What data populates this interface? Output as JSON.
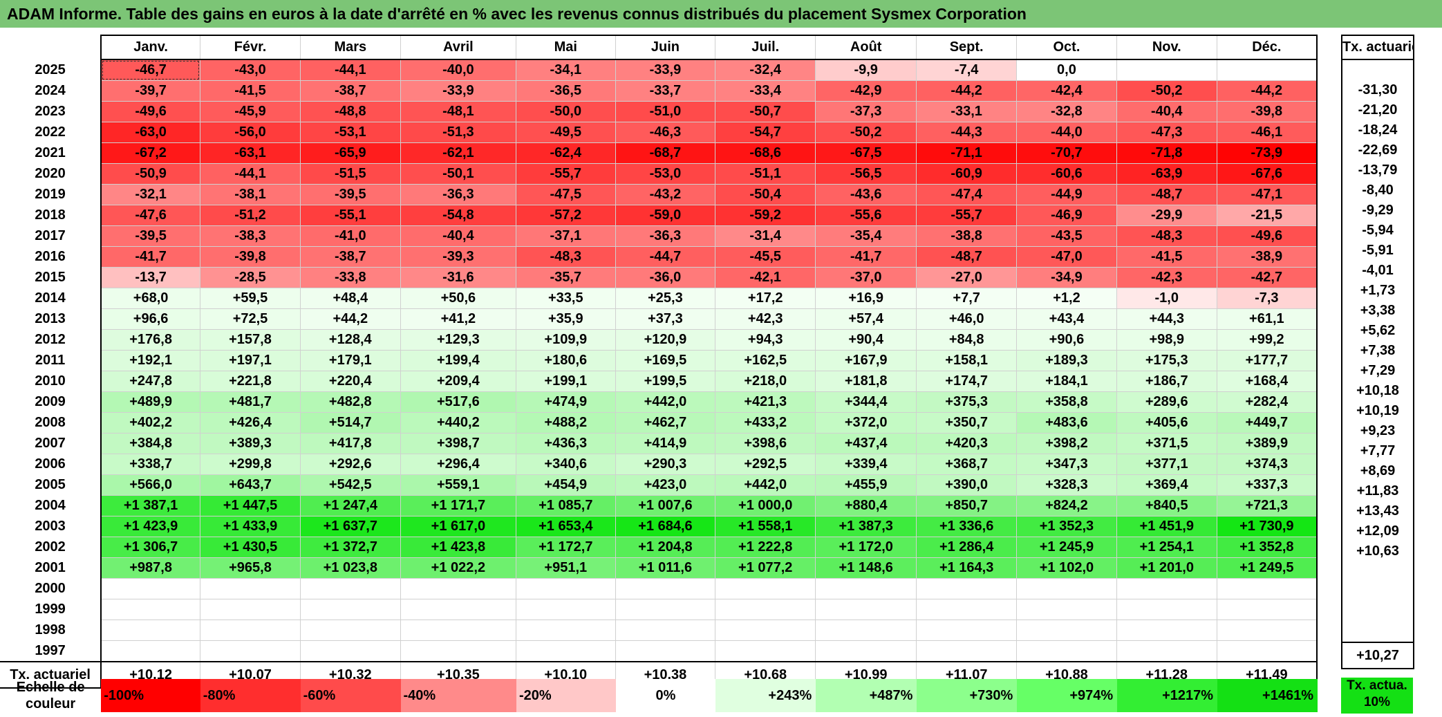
{
  "title": "ADAM Informe. Table des gains en euros à la date d'arrêté en % avec les revenus connus distribués du placement Sysmex Corporation",
  "months": [
    "Janv.",
    "Févr.",
    "Mars",
    "Avril",
    "Mai",
    "Juin",
    "Juil.",
    "Août",
    "Sept.",
    "Oct.",
    "Nov.",
    "Déc."
  ],
  "annual_header": "Tx. actuariel",
  "rows": [
    {
      "year": "2025",
      "values": [
        "-46,7",
        "-43,0",
        "-44,1",
        "-40,0",
        "-34,1",
        "-33,9",
        "-32,4",
        "-9,9",
        "-7,4",
        "0,0",
        "",
        ""
      ],
      "annual": ""
    },
    {
      "year": "2024",
      "values": [
        "-39,7",
        "-41,5",
        "-38,7",
        "-33,9",
        "-36,5",
        "-33,7",
        "-33,4",
        "-42,9",
        "-44,2",
        "-42,4",
        "-50,2",
        "-44,2"
      ],
      "annual": "-31,30"
    },
    {
      "year": "2023",
      "values": [
        "-49,6",
        "-45,9",
        "-48,8",
        "-48,1",
        "-50,0",
        "-51,0",
        "-50,7",
        "-37,3",
        "-33,1",
        "-32,8",
        "-40,4",
        "-39,8"
      ],
      "annual": "-21,20"
    },
    {
      "year": "2022",
      "values": [
        "-63,0",
        "-56,0",
        "-53,1",
        "-51,3",
        "-49,5",
        "-46,3",
        "-54,7",
        "-50,2",
        "-44,3",
        "-44,0",
        "-47,3",
        "-46,1"
      ],
      "annual": "-18,24"
    },
    {
      "year": "2021",
      "values": [
        "-67,2",
        "-63,1",
        "-65,9",
        "-62,1",
        "-62,4",
        "-68,7",
        "-68,6",
        "-67,5",
        "-71,1",
        "-70,7",
        "-71,8",
        "-73,9"
      ],
      "annual": "-22,69"
    },
    {
      "year": "2020",
      "values": [
        "-50,9",
        "-44,1",
        "-51,5",
        "-50,1",
        "-55,7",
        "-53,0",
        "-51,1",
        "-56,5",
        "-60,9",
        "-60,6",
        "-63,9",
        "-67,6"
      ],
      "annual": "-13,79"
    },
    {
      "year": "2019",
      "values": [
        "-32,1",
        "-38,1",
        "-39,5",
        "-36,3",
        "-47,5",
        "-43,2",
        "-50,4",
        "-43,6",
        "-47,4",
        "-44,9",
        "-48,7",
        "-47,1"
      ],
      "annual": "-8,40"
    },
    {
      "year": "2018",
      "values": [
        "-47,6",
        "-51,2",
        "-55,1",
        "-54,8",
        "-57,2",
        "-59,0",
        "-59,2",
        "-55,6",
        "-55,7",
        "-46,9",
        "-29,9",
        "-21,5"
      ],
      "annual": "-9,29"
    },
    {
      "year": "2017",
      "values": [
        "-39,5",
        "-38,3",
        "-41,0",
        "-40,4",
        "-37,1",
        "-36,3",
        "-31,4",
        "-35,4",
        "-38,8",
        "-43,5",
        "-48,3",
        "-49,6"
      ],
      "annual": "-5,94"
    },
    {
      "year": "2016",
      "values": [
        "-41,7",
        "-39,8",
        "-38,7",
        "-39,3",
        "-48,3",
        "-44,7",
        "-45,5",
        "-41,7",
        "-48,7",
        "-47,0",
        "-41,5",
        "-38,9"
      ],
      "annual": "-5,91"
    },
    {
      "year": "2015",
      "values": [
        "-13,7",
        "-28,5",
        "-33,8",
        "-31,6",
        "-35,7",
        "-36,0",
        "-42,1",
        "-37,0",
        "-27,0",
        "-34,9",
        "-42,3",
        "-42,7"
      ],
      "annual": "-4,01"
    },
    {
      "year": "2014",
      "values": [
        "+68,0",
        "+59,5",
        "+48,4",
        "+50,6",
        "+33,5",
        "+25,3",
        "+17,2",
        "+16,9",
        "+7,7",
        "+1,2",
        "-1,0",
        "-7,3"
      ],
      "annual": "+1,73"
    },
    {
      "year": "2013",
      "values": [
        "+96,6",
        "+72,5",
        "+44,2",
        "+41,2",
        "+35,9",
        "+37,3",
        "+42,3",
        "+57,4",
        "+46,0",
        "+43,4",
        "+44,3",
        "+61,1"
      ],
      "annual": "+3,38"
    },
    {
      "year": "2012",
      "values": [
        "+176,8",
        "+157,8",
        "+128,4",
        "+129,3",
        "+109,9",
        "+120,9",
        "+94,3",
        "+90,4",
        "+84,8",
        "+90,6",
        "+98,9",
        "+99,2"
      ],
      "annual": "+5,62"
    },
    {
      "year": "2011",
      "values": [
        "+192,1",
        "+197,1",
        "+179,1",
        "+199,4",
        "+180,6",
        "+169,5",
        "+162,5",
        "+167,9",
        "+158,1",
        "+189,3",
        "+175,3",
        "+177,7"
      ],
      "annual": "+7,38"
    },
    {
      "year": "2010",
      "values": [
        "+247,8",
        "+221,8",
        "+220,4",
        "+209,4",
        "+199,1",
        "+199,5",
        "+218,0",
        "+181,8",
        "+174,7",
        "+184,1",
        "+186,7",
        "+168,4"
      ],
      "annual": "+7,29"
    },
    {
      "year": "2009",
      "values": [
        "+489,9",
        "+481,7",
        "+482,8",
        "+517,6",
        "+474,9",
        "+442,0",
        "+421,3",
        "+344,4",
        "+375,3",
        "+358,8",
        "+289,6",
        "+282,4"
      ],
      "annual": "+10,18"
    },
    {
      "year": "2008",
      "values": [
        "+402,2",
        "+426,4",
        "+514,7",
        "+440,2",
        "+488,2",
        "+462,7",
        "+433,2",
        "+372,0",
        "+350,7",
        "+483,6",
        "+405,6",
        "+449,7"
      ],
      "annual": "+10,19"
    },
    {
      "year": "2007",
      "values": [
        "+384,8",
        "+389,3",
        "+417,8",
        "+398,7",
        "+436,3",
        "+414,9",
        "+398,6",
        "+437,4",
        "+420,3",
        "+398,2",
        "+371,5",
        "+389,9"
      ],
      "annual": "+9,23"
    },
    {
      "year": "2006",
      "values": [
        "+338,7",
        "+299,8",
        "+292,6",
        "+296,4",
        "+340,6",
        "+290,3",
        "+292,5",
        "+339,4",
        "+368,7",
        "+347,3",
        "+377,1",
        "+374,3"
      ],
      "annual": "+7,77"
    },
    {
      "year": "2005",
      "values": [
        "+566,0",
        "+643,7",
        "+542,5",
        "+559,1",
        "+454,9",
        "+423,0",
        "+442,0",
        "+455,9",
        "+390,0",
        "+328,3",
        "+369,4",
        "+337,3"
      ],
      "annual": "+8,69"
    },
    {
      "year": "2004",
      "values": [
        "+1 387,1",
        "+1 447,5",
        "+1 247,4",
        "+1 171,7",
        "+1 085,7",
        "+1 007,6",
        "+1 000,0",
        "+880,4",
        "+850,7",
        "+824,2",
        "+840,5",
        "+721,3"
      ],
      "annual": "+11,83"
    },
    {
      "year": "2003",
      "values": [
        "+1 423,9",
        "+1 433,9",
        "+1 637,7",
        "+1 617,0",
        "+1 653,4",
        "+1 684,6",
        "+1 558,1",
        "+1 387,3",
        "+1 336,6",
        "+1 352,3",
        "+1 451,9",
        "+1 730,9"
      ],
      "annual": "+13,43"
    },
    {
      "year": "2002",
      "values": [
        "+1 306,7",
        "+1 430,5",
        "+1 372,7",
        "+1 423,8",
        "+1 172,7",
        "+1 204,8",
        "+1 222,8",
        "+1 172,0",
        "+1 286,4",
        "+1 245,9",
        "+1 254,1",
        "+1 352,8"
      ],
      "annual": "+12,09"
    },
    {
      "year": "2001",
      "values": [
        "+987,8",
        "+965,8",
        "+1 023,8",
        "+1 022,2",
        "+951,1",
        "+1 011,6",
        "+1 077,2",
        "+1 148,6",
        "+1 164,3",
        "+1 102,0",
        "+1 201,0",
        "+1 249,5"
      ],
      "annual": "+10,63"
    },
    {
      "year": "2000",
      "values": [
        "",
        "",
        "",
        "",
        "",
        "",
        "",
        "",
        "",
        "",
        "",
        ""
      ],
      "annual": ""
    },
    {
      "year": "1999",
      "values": [
        "",
        "",
        "",
        "",
        "",
        "",
        "",
        "",
        "",
        "",
        "",
        ""
      ],
      "annual": ""
    },
    {
      "year": "1998",
      "values": [
        "",
        "",
        "",
        "",
        "",
        "",
        "",
        "",
        "",
        "",
        "",
        ""
      ],
      "annual": ""
    },
    {
      "year": "1997",
      "values": [
        "",
        "",
        "",
        "",
        "",
        "",
        "",
        "",
        "",
        "",
        "",
        ""
      ],
      "annual": ""
    }
  ],
  "footer": {
    "label": "Tx. actuariel",
    "values": [
      "+10,12",
      "+10,07",
      "+10,32",
      "+10,35",
      "+10,10",
      "+10,38",
      "+10,68",
      "+10,99",
      "+11,07",
      "+10,88",
      "+11,28",
      "+11,49"
    ],
    "annual": "+10,27"
  },
  "scale": {
    "label": "Echelle de couleur",
    "items": [
      {
        "text": "-100%",
        "color": "#FF0000",
        "align": "left"
      },
      {
        "text": "-80%",
        "color": "#FF2E2E",
        "align": "left"
      },
      {
        "text": "-60%",
        "color": "#FF4B4B",
        "align": "left"
      },
      {
        "text": "-40%",
        "color": "#FF8A8A",
        "align": "left"
      },
      {
        "text": "-20%",
        "color": "#FFC8C8",
        "align": "left"
      },
      {
        "text": "0%",
        "color": "#FFFFFF",
        "align": "center"
      },
      {
        "text": "+243%",
        "color": "#E0FFE0",
        "align": "right"
      },
      {
        "text": "+487%",
        "color": "#B2FFB2",
        "align": "right"
      },
      {
        "text": "+730%",
        "color": "#8CFF8C",
        "align": "right"
      },
      {
        "text": "+974%",
        "color": "#66FF66",
        "align": "right"
      },
      {
        "text": "+1217%",
        "color": "#33EE33",
        "align": "right"
      },
      {
        "text": "+1461%",
        "color": "#14E014",
        "align": "right"
      }
    ],
    "legend": "Tx. actua. 10%",
    "legend_color": "#14E014"
  }
}
